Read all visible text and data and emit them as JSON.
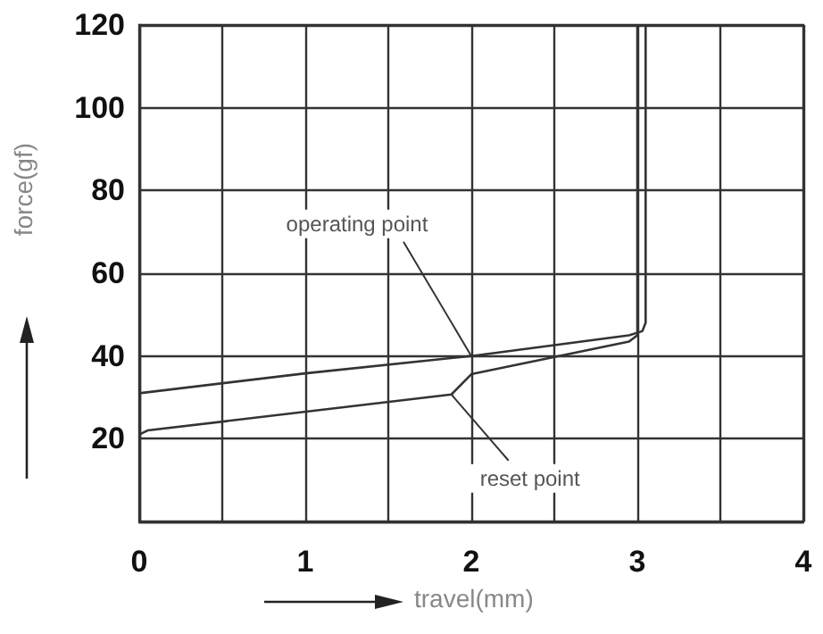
{
  "chart_data": {
    "type": "line",
    "xlabel": "travel(mm)",
    "ylabel": "force(gf)",
    "series": [
      {
        "color": "#333333",
        "x": [
          0,
          1,
          2,
          2.95,
          3.03,
          3.05,
          3.05
        ],
        "values": [
          31,
          35.8,
          40,
          45,
          46,
          48,
          120
        ]
      },
      {
        "color": "#333333",
        "x": [
          0,
          0.05,
          1.88,
          2,
          2.95,
          3,
          3
        ],
        "values": [
          21,
          22,
          30.7,
          35.6,
          43.5,
          45,
          120
        ]
      }
    ],
    "xlim": [
      0,
      4
    ],
    "xticks": [
      0,
      {
        "value": 0.5,
        "label": null
      },
      1,
      {
        "value": 1.5,
        "label": null
      },
      2,
      {
        "value": 2.5,
        "label": null
      },
      3,
      {
        "value": 3.5,
        "label": null
      },
      4
    ],
    "ylim": [
      0,
      120
    ],
    "yticks": [
      {
        "value": 0,
        "label": null
      },
      20,
      40,
      60,
      80,
      100,
      120
    ],
    "grid": true,
    "marker": "none",
    "line_style": "solid",
    "annotations": [
      {
        "text": "operating point",
        "x": 2,
        "y": 40
      },
      {
        "text": "reset point",
        "x": 1.88,
        "y": 30.7
      }
    ]
  }
}
